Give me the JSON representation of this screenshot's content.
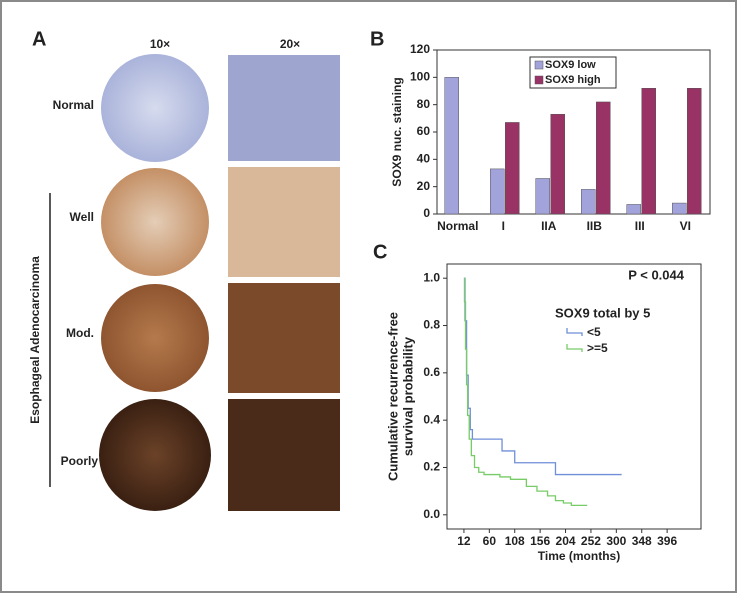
{
  "panel_a": {
    "label": "A",
    "columns": [
      "10×",
      "20×"
    ],
    "rows": [
      "Normal",
      "Well",
      "Mod.",
      "Poorly"
    ],
    "group_label": "Esophageal Adenocarcinoma"
  },
  "chart_data": [
    {
      "type": "bar",
      "label": "B",
      "ylabel": "SOX9 nuc. staining",
      "categories": [
        "Normal",
        "I",
        "IIA",
        "IIB",
        "III",
        "VI"
      ],
      "series": [
        {
          "name": "SOX9 low",
          "color": "#a3a3dc",
          "values": [
            100,
            33,
            26,
            18,
            7,
            8
          ]
        },
        {
          "name": "SOX9 high",
          "color": "#993366",
          "values": [
            null,
            67,
            73,
            82,
            92,
            92
          ]
        }
      ],
      "ylim": [
        0,
        120
      ],
      "yticks": [
        0,
        20,
        40,
        60,
        80,
        100,
        120
      ]
    },
    {
      "type": "line",
      "label": "C",
      "annotation": "P < 0.044",
      "ylabel": [
        "Cumulative recurrence-free",
        "survival probability"
      ],
      "xlabel": "Time (months)",
      "legend_title": "SOX9 total by 5",
      "series": [
        {
          "name": "<5",
          "color": "#6f8fd8",
          "x": [
            12,
            14,
            17,
            20,
            24,
            28,
            84,
            108,
            185,
            310
          ],
          "values": [
            1.0,
            0.82,
            0.59,
            0.45,
            0.36,
            0.32,
            0.27,
            0.22,
            0.17,
            0.17
          ]
        },
        {
          "name": ">=5",
          "color": "#77cc66",
          "x": [
            12,
            13,
            15,
            17,
            19,
            22,
            26,
            32,
            40,
            50,
            80,
            100,
            130,
            150,
            170,
            185,
            200,
            215,
            245
          ],
          "values": [
            1.0,
            0.9,
            0.7,
            0.55,
            0.42,
            0.32,
            0.25,
            0.2,
            0.18,
            0.17,
            0.16,
            0.15,
            0.12,
            0.1,
            0.08,
            0.06,
            0.05,
            0.04,
            0.04
          ]
        }
      ],
      "xlim": [
        -20,
        460
      ],
      "xticks": [
        12,
        60,
        108,
        156,
        204,
        252,
        300,
        348,
        396
      ],
      "ylim": [
        -0.06,
        1.06
      ],
      "yticks": [
        {
          "value": 0,
          "label": "0.0"
        },
        0.2,
        0.4,
        0.6,
        0.8,
        {
          "value": 1,
          "label": "1.0"
        }
      ]
    }
  ]
}
